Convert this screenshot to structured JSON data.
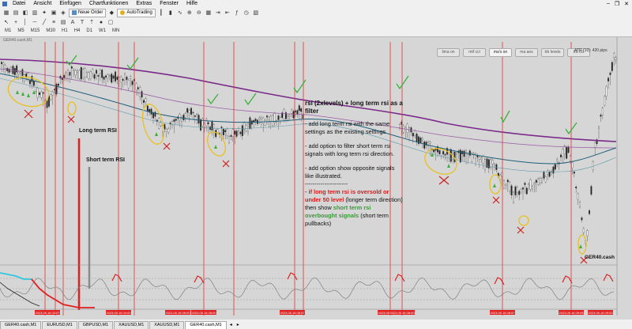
{
  "menu": [
    "Datei",
    "Ansicht",
    "Einfügen",
    "Chartfunktionen",
    "Extras",
    "Fenster",
    "Hilfe"
  ],
  "toolbar": {
    "new_order": "Neue Order",
    "autotrading": "AutoTrading"
  },
  "timeframes": [
    "M1",
    "M5",
    "M15",
    "M30",
    "H1",
    "H4",
    "D1",
    "W1",
    "MN"
  ],
  "chart": {
    "symbol_label": "GER40.cash,M1",
    "pills": [
      "lima on",
      "mtf cci",
      "ma's on",
      "ma aos",
      "trb levels",
      "trb cci"
    ],
    "atr": "ATR (10): 420 pips",
    "price_label": "GER40.cash",
    "long_rsi_label": "Long term RSI",
    "short_rsi_label": "Short term RSI",
    "date_labels": [
      "2023.05.16 03:07",
      "2023.05.16 04:00",
      "2023.05.16 05:00",
      "2023.05.16 06:00",
      "2023.05.16 06:57",
      "2023.05.16 07:40",
      "2023.05.16 08:00",
      "2023.05.16 08:57",
      "2023.05.16 09:05",
      "2023.05.16 09:00"
    ]
  },
  "note": {
    "title": "rsi (2xlevels) + long term rsi as a filter",
    "line1": "- add long term rsi with the same settings as the existing settings",
    "line2": "- add option to filter short term rsi signals with long term rsi direction.",
    "line3": "- add option show opposite signals like illustrated.",
    "sep": "----------------------",
    "red_text": "if long term rsi is oversold or under 50 level",
    "mid_text": "(longer term direction) then show",
    "green_text": "short term rsi overbought signals",
    "end_text": "(short term pullbacks)"
  },
  "sheet_tabs": [
    "GER40.cash,M1",
    "EURUSD,M1",
    "GBPUSD,M1",
    "XAUUSD,M1",
    "XAUUSD,M1",
    "GER40.cash,M1"
  ],
  "active_tab_index": 5,
  "colors": {
    "chart_bg": "#d6d6d6",
    "ma_purple": "#7a2a8a",
    "ma_teal": "#1f5f7a",
    "red_line": "#e03030",
    "signal_green": "#3ab03a",
    "annotation_yellow": "#e8c020",
    "rsi_cyan": "#30c8e0"
  }
}
